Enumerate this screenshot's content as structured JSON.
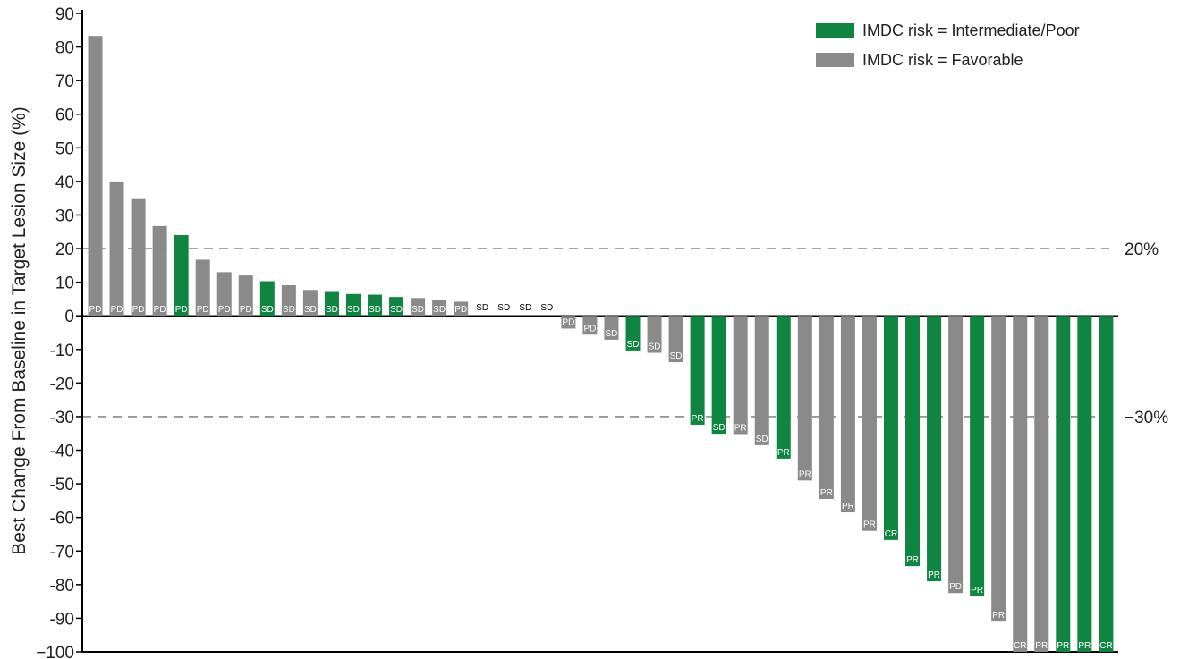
{
  "chart_data": {
    "type": "bar",
    "title": "",
    "xlabel": "",
    "ylabel": "Best Change From Baseline in Target Lesion Size (%)",
    "ylim": [
      -100,
      90
    ],
    "yticks": [
      90,
      80,
      70,
      60,
      50,
      40,
      30,
      20,
      10,
      0,
      -10,
      -20,
      -30,
      -40,
      -50,
      -60,
      -70,
      -80,
      -90,
      -100
    ],
    "ytick_labels": [
      "90",
      "80",
      "70",
      "60",
      "50",
      "40",
      "30",
      "20",
      "10",
      "0",
      "-10",
      "-20",
      "-30",
      "-40",
      "-50",
      "-60",
      "-70",
      "-80",
      "-90",
      "−100"
    ],
    "reference_lines": [
      {
        "value": 20,
        "label": "20%",
        "style": "dashed"
      },
      {
        "value": -30,
        "label": "−30%",
        "style": "dashed"
      }
    ],
    "legend": {
      "position": "top-right",
      "entries": [
        {
          "label": "IMDC risk = Intermediate/Poor",
          "color": "#108541"
        },
        {
          "label": "IMDC risk = Favorable",
          "color": "#8a8a8a"
        }
      ]
    },
    "colors": {
      "Intermediate/Poor": "#108541",
      "Favorable": "#8a8a8a"
    },
    "bars": [
      {
        "value": 83.3,
        "risk": "Favorable",
        "response": "PD"
      },
      {
        "value": 40,
        "risk": "Favorable",
        "response": "PD"
      },
      {
        "value": 35,
        "risk": "Favorable",
        "response": "PD"
      },
      {
        "value": 26.7,
        "risk": "Favorable",
        "response": "PD"
      },
      {
        "value": 24,
        "risk": "Intermediate/Poor",
        "response": "PD"
      },
      {
        "value": 16.7,
        "risk": "Favorable",
        "response": "PD"
      },
      {
        "value": 13,
        "risk": "Favorable",
        "response": "PD"
      },
      {
        "value": 12,
        "risk": "Favorable",
        "response": "PD"
      },
      {
        "value": 10.3,
        "risk": "Intermediate/Poor",
        "response": "SD"
      },
      {
        "value": 9.1,
        "risk": "Favorable",
        "response": "SD"
      },
      {
        "value": 7.7,
        "risk": "Favorable",
        "response": "SD"
      },
      {
        "value": 7.1,
        "risk": "Intermediate/Poor",
        "response": "SD"
      },
      {
        "value": 6.5,
        "risk": "Intermediate/Poor",
        "response": "SD"
      },
      {
        "value": 6.3,
        "risk": "Intermediate/Poor",
        "response": "SD"
      },
      {
        "value": 5.6,
        "risk": "Intermediate/Poor",
        "response": "SD"
      },
      {
        "value": 5.3,
        "risk": "Favorable",
        "response": "SD"
      },
      {
        "value": 4.7,
        "risk": "Favorable",
        "response": "SD"
      },
      {
        "value": 4.2,
        "risk": "Favorable",
        "response": "PD"
      },
      {
        "value": 0,
        "risk": "Favorable",
        "response": "SD"
      },
      {
        "value": 0,
        "risk": "Favorable",
        "response": "SD"
      },
      {
        "value": 0,
        "risk": "Favorable",
        "response": "SD"
      },
      {
        "value": 0,
        "risk": "Favorable",
        "response": "SD"
      },
      {
        "value": -3.8,
        "risk": "Favorable",
        "response": "PD"
      },
      {
        "value": -5.6,
        "risk": "Favorable",
        "response": "PD"
      },
      {
        "value": -7.1,
        "risk": "Favorable",
        "response": "SD"
      },
      {
        "value": -10.3,
        "risk": "Intermediate/Poor",
        "response": "SD"
      },
      {
        "value": -11,
        "risk": "Favorable",
        "response": "SD"
      },
      {
        "value": -13.8,
        "risk": "Favorable",
        "response": "SD"
      },
      {
        "value": -32.4,
        "risk": "Intermediate/Poor",
        "response": "PR"
      },
      {
        "value": -35.1,
        "risk": "Intermediate/Poor",
        "response": "SD"
      },
      {
        "value": -35.2,
        "risk": "Favorable",
        "response": "PR"
      },
      {
        "value": -38.5,
        "risk": "Favorable",
        "response": "SD"
      },
      {
        "value": -42.5,
        "risk": "Intermediate/Poor",
        "response": "PR"
      },
      {
        "value": -49,
        "risk": "Favorable",
        "response": "PR"
      },
      {
        "value": -54.5,
        "risk": "Favorable",
        "response": "PR"
      },
      {
        "value": -58.5,
        "risk": "Favorable",
        "response": "PR"
      },
      {
        "value": -64,
        "risk": "Favorable",
        "response": "PR"
      },
      {
        "value": -66.7,
        "risk": "Intermediate/Poor",
        "response": "CR"
      },
      {
        "value": -74.5,
        "risk": "Intermediate/Poor",
        "response": "PR"
      },
      {
        "value": -79,
        "risk": "Intermediate/Poor",
        "response": "PR"
      },
      {
        "value": -82.5,
        "risk": "Favorable",
        "response": "PD"
      },
      {
        "value": -83.5,
        "risk": "Intermediate/Poor",
        "response": "PR"
      },
      {
        "value": -91,
        "risk": "Favorable",
        "response": "PR"
      },
      {
        "value": -100,
        "risk": "Favorable",
        "response": "CR"
      },
      {
        "value": -100,
        "risk": "Favorable",
        "response": "PR"
      },
      {
        "value": -100,
        "risk": "Intermediate/Poor",
        "response": "PR"
      },
      {
        "value": -100,
        "risk": "Intermediate/Poor",
        "response": "PR"
      },
      {
        "value": -100,
        "risk": "Intermediate/Poor",
        "response": "CR"
      }
    ]
  }
}
